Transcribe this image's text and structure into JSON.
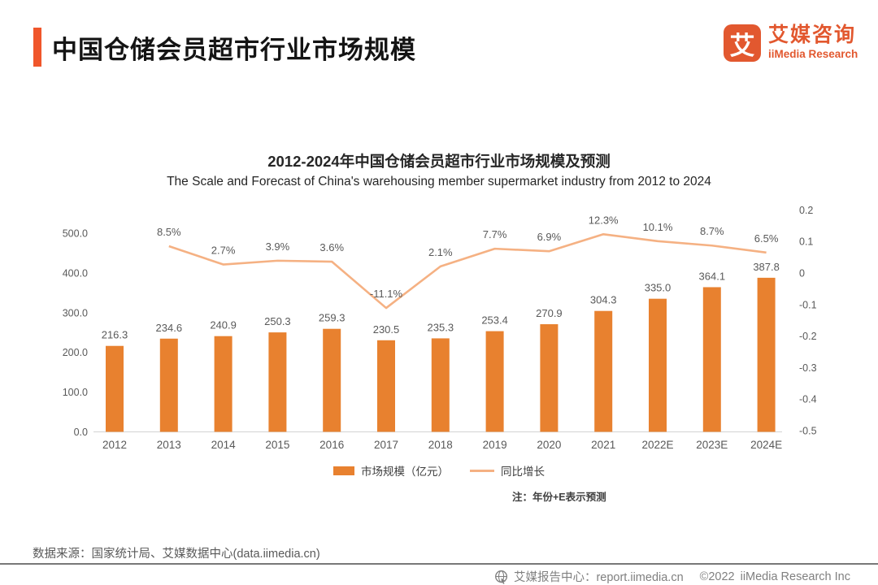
{
  "header": {
    "title": "中国仓储会员超市行业市场规模",
    "logo": {
      "glyph": "艾",
      "name_cn": "艾媒咨询",
      "name_en": "iiMedia Research"
    }
  },
  "colors": {
    "accent": "#F0562B",
    "logo": "#E2582F",
    "bar": "#E8812F",
    "line": "#F5B183"
  },
  "chart_data": {
    "type": "combo-bar-line",
    "title": "2012-2024年中国仓储会员超市行业市场规模及预测",
    "subtitle": "The Scale and Forecast of China's warehousing member supermarket industry from 2012 to 2024",
    "note": "注：年份+E表示预测",
    "categories": [
      "2012",
      "2013",
      "2014",
      "2015",
      "2016",
      "2017",
      "2018",
      "2019",
      "2020",
      "2021",
      "2022E",
      "2023E",
      "2024E"
    ],
    "series": [
      {
        "name": "市场规模（亿元）",
        "type": "bar",
        "axis": "left",
        "color": "#E8812F",
        "values": [
          216.3,
          234.6,
          240.9,
          250.3,
          259.3,
          230.5,
          235.3,
          253.4,
          270.9,
          304.3,
          335.0,
          364.1,
          387.8
        ],
        "labels": [
          "216.3",
          "234.6",
          "240.9",
          "250.3",
          "259.3",
          "230.5",
          "235.3",
          "253.4",
          "270.9",
          "304.3",
          "335.0",
          "364.1",
          "387.8"
        ]
      },
      {
        "name": "同比增长",
        "type": "line",
        "axis": "right",
        "color": "#F5B183",
        "values": [
          null,
          0.085,
          0.027,
          0.039,
          0.036,
          -0.111,
          0.021,
          0.077,
          0.069,
          0.123,
          0.101,
          0.087,
          0.065
        ],
        "labels": [
          null,
          "8.5%",
          "2.7%",
          "3.9%",
          "3.6%",
          "-11.1%",
          "2.1%",
          "7.7%",
          "6.9%",
          "12.3%",
          "10.1%",
          "8.7%",
          "6.5%"
        ]
      }
    ],
    "left_axis": {
      "min": 0,
      "max": 500,
      "ticks": [
        "500.0",
        "400.0",
        "300.0",
        "200.0",
        "100.0",
        "0.0"
      ]
    },
    "right_axis": {
      "min": -0.5,
      "max": 0.2,
      "ticks": [
        "0.2",
        "0.1",
        "0",
        "-0.1",
        "-0.2",
        "-0.3",
        "-0.4",
        "-0.5"
      ]
    },
    "gridlines": false,
    "legend_position": "bottom"
  },
  "footer": {
    "source": "数据来源：国家统计局、艾媒数据中心(data.iimedia.cn)",
    "report_center": "艾媒报告中心：report.iimedia.cn",
    "copyright_year": "©2022",
    "company": "iiMedia Research  Inc"
  }
}
